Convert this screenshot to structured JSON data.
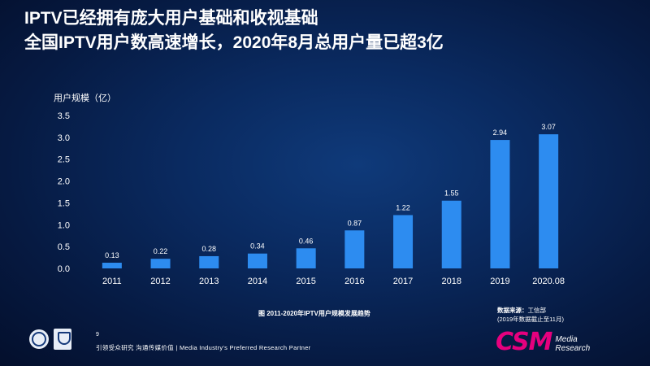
{
  "header": {
    "title_line1": "IPTV已经拥有庞大用户基础和收视基础",
    "title_line2": "全国IPTV用户数高速增长，2020年8月总用户量已超3亿"
  },
  "chart_data": {
    "type": "bar",
    "title": "",
    "ylabel": "用户规模（亿）",
    "xlabel": "",
    "categories": [
      "2011",
      "2012",
      "2013",
      "2014",
      "2015",
      "2016",
      "2017",
      "2018",
      "2019",
      "2020.08"
    ],
    "values": [
      0.13,
      0.22,
      0.28,
      0.34,
      0.46,
      0.87,
      1.22,
      1.55,
      2.94,
      3.07
    ],
    "data_labels": [
      "0.13",
      "0.22",
      "0.28",
      "0.34",
      "0.46",
      "0.87",
      "1.22",
      "1.55",
      "2.94",
      "3.07"
    ],
    "ylim": [
      0,
      3.5
    ],
    "yticks": [
      "0.0",
      "0.5",
      "1.0",
      "1.5",
      "2.0",
      "2.5",
      "3.0",
      "3.5"
    ],
    "grid": false,
    "bar_color": "#2d8cf0"
  },
  "caption": "图  2011-2020年IPTV用户规模发展趋势",
  "source": {
    "label": "数据来源：",
    "name": "工信部",
    "note": "(2019年数据截止至11月)"
  },
  "footer": {
    "page_number": "9",
    "slogan": "引领受众研究  沟通传媒价值 | Media Industry's Preferred Research Partner"
  },
  "logo": {
    "brand": "CSM",
    "sub_line1": "Media",
    "sub_line2": "Research",
    "brand_color": "#e6007e"
  }
}
